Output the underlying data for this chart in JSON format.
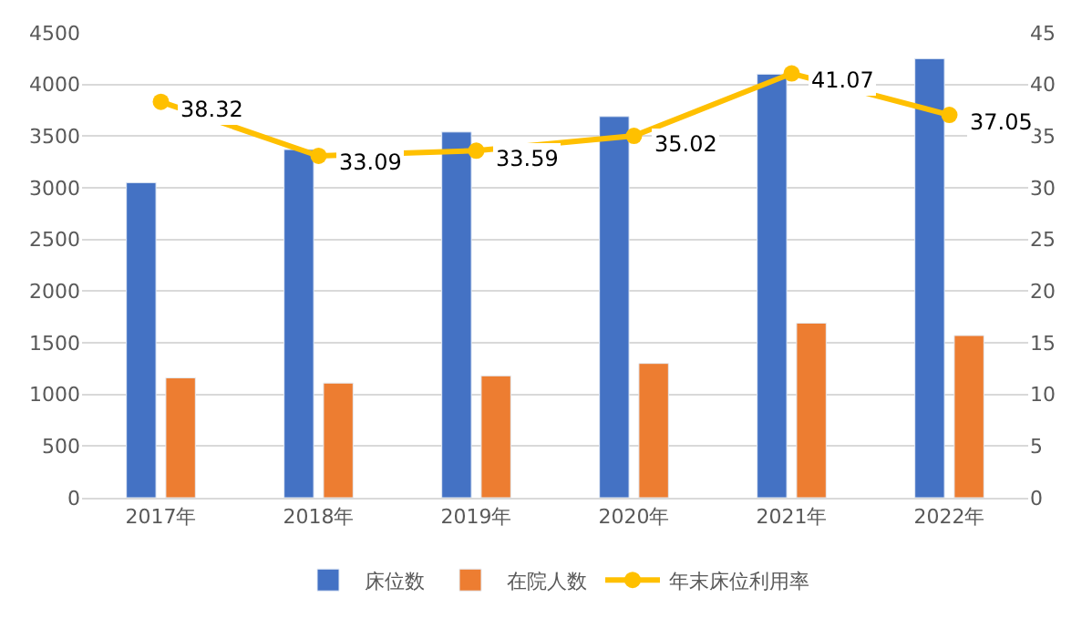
{
  "chart_data": {
    "type": "bar",
    "categories": [
      "2017年",
      "2018年",
      "2019年",
      "2020年",
      "2021年",
      "2022年"
    ],
    "series": [
      {
        "name": "床位数",
        "color": "#4472c4",
        "values": [
          3050,
          3370,
          3540,
          3690,
          4100,
          4250
        ]
      },
      {
        "name": "在院人数",
        "color": "#ed7d31",
        "values": [
          1160,
          1110,
          1180,
          1300,
          1690,
          1570
        ]
      },
      {
        "name": "年末床位利用率",
        "type": "line",
        "axis": "y2",
        "color": "#ffc000",
        "marker": "circle",
        "values": [
          38.32,
          33.09,
          33.59,
          35.02,
          41.07,
          37.05
        ],
        "value_labels": [
          "38.32",
          "33.09",
          "33.59",
          "35.02",
          "41.07",
          "37.05"
        ]
      }
    ],
    "ylim": [
      0,
      4500
    ],
    "yticks": [
      0,
      500,
      1000,
      1500,
      2000,
      2500,
      3000,
      3500,
      4000,
      4500
    ],
    "y2lim": [
      0,
      45
    ],
    "y2ticks": [
      0,
      5,
      10,
      15,
      20,
      25,
      30,
      35,
      40,
      45
    ],
    "grid": "y",
    "legend": "bottom"
  }
}
